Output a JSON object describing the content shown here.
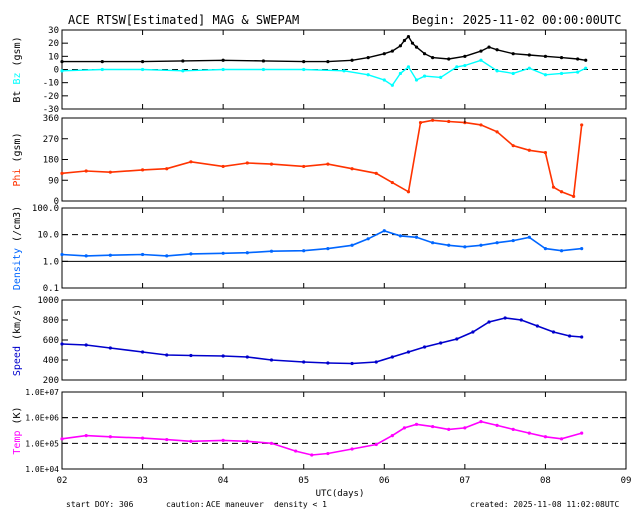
{
  "header": {
    "title": "ACE RTSW[Estimated] MAG & SWEPAM",
    "begin": "Begin: 2025-11-02 00:00:00UTC"
  },
  "footer": {
    "start_doy": "start DOY: 306",
    "caution_label": "caution:",
    "caution_maneuver": "ACE maneuver",
    "caution_density": "density < 1",
    "created": "created: 2025-11-08 11:02:08UTC"
  },
  "colors": {
    "bt": "#000000",
    "bz": "#00ffff",
    "phi": "#ff3300",
    "density": "#0066ff",
    "speed": "#0000cc",
    "temp": "#ff00ff",
    "caution_blue": "#0000cc",
    "density_blue": "#3366ff"
  },
  "chart_data": [
    {
      "type": "line",
      "panel": "mag",
      "ylabel_parts": [
        "Bt",
        "Bz",
        "(gsm)"
      ],
      "ylabel_colors": [
        "#000000",
        "#00ffff",
        "#000000"
      ],
      "ylim": [
        -30,
        30
      ],
      "yticks": [
        30,
        20,
        10,
        0,
        -10,
        -20,
        -30
      ],
      "ytick_labels": [
        "30",
        "20",
        "10",
        "0",
        "-10",
        "-20",
        "-30"
      ],
      "dashed_lines": [
        0
      ],
      "series": [
        {
          "name": "Bt",
          "color": "#000000",
          "x": [
            2.0,
            2.5,
            3.0,
            3.5,
            4.0,
            4.5,
            5.0,
            5.3,
            5.6,
            5.8,
            6.0,
            6.1,
            6.2,
            6.25,
            6.3,
            6.35,
            6.4,
            6.5,
            6.6,
            6.8,
            7.0,
            7.2,
            7.3,
            7.4,
            7.6,
            7.8,
            8.0,
            8.2,
            8.4,
            8.5
          ],
          "y": [
            6,
            6,
            6,
            6.5,
            7,
            6.5,
            6,
            6,
            7,
            9,
            12,
            14,
            18,
            22,
            25,
            20,
            17,
            12,
            9,
            8,
            10,
            14,
            17,
            15,
            12,
            11,
            10,
            9,
            8,
            7
          ]
        },
        {
          "name": "Bz",
          "color": "#00ffff",
          "x": [
            2.0,
            2.5,
            3.0,
            3.5,
            4.0,
            4.5,
            5.0,
            5.5,
            5.8,
            6.0,
            6.1,
            6.2,
            6.3,
            6.4,
            6.5,
            6.7,
            6.9,
            7.0,
            7.2,
            7.4,
            7.6,
            7.8,
            8.0,
            8.2,
            8.4,
            8.5
          ],
          "y": [
            -1,
            0,
            0,
            -1,
            0,
            0,
            0,
            -1,
            -4,
            -8,
            -12,
            -3,
            2,
            -8,
            -5,
            -6,
            2,
            3,
            7,
            -1,
            -3,
            1,
            -4,
            -3,
            -2,
            1
          ]
        }
      ]
    },
    {
      "type": "scatter",
      "panel": "phi",
      "ylabel_parts": [
        "Phi",
        "(gsm)"
      ],
      "ylabel_colors": [
        "#ff3300",
        "#000000"
      ],
      "ylim": [
        0,
        360
      ],
      "yticks": [
        360,
        270,
        180,
        90,
        0
      ],
      "ytick_labels": [
        "360",
        "270",
        "180",
        "90",
        "0"
      ],
      "series": [
        {
          "name": "Phi",
          "color": "#ff3300",
          "x": [
            2.0,
            2.3,
            2.6,
            3.0,
            3.3,
            3.6,
            4.0,
            4.3,
            4.6,
            5.0,
            5.3,
            5.6,
            5.9,
            6.1,
            6.3,
            6.45,
            6.6,
            6.8,
            7.0,
            7.2,
            7.4,
            7.6,
            7.8,
            8.0,
            8.1,
            8.2,
            8.35,
            8.45
          ],
          "y": [
            120,
            130,
            125,
            135,
            140,
            170,
            150,
            165,
            160,
            150,
            160,
            140,
            120,
            80,
            40,
            340,
            350,
            345,
            340,
            330,
            300,
            240,
            220,
            210,
            60,
            40,
            20,
            330
          ]
        }
      ]
    },
    {
      "type": "scatter",
      "panel": "density",
      "ylabel_parts": [
        "Density",
        "(/cm3)"
      ],
      "ylabel_colors": [
        "#0066ff",
        "#000000"
      ],
      "scale": "log",
      "ylim": [
        0.1,
        100.0
      ],
      "yticks": [
        100.0,
        10.0,
        1.0,
        0.1
      ],
      "ytick_labels": [
        "100.0",
        "10.0",
        "1.0",
        "0.1"
      ],
      "dashed_lines": [
        10.0
      ],
      "solid_lines": [
        1.0
      ],
      "series": [
        {
          "name": "Density",
          "color": "#0066ff",
          "x": [
            2.0,
            2.3,
            2.6,
            3.0,
            3.3,
            3.6,
            4.0,
            4.3,
            4.6,
            5.0,
            5.3,
            5.6,
            5.8,
            6.0,
            6.2,
            6.4,
            6.6,
            6.8,
            7.0,
            7.2,
            7.4,
            7.6,
            7.8,
            8.0,
            8.2,
            8.45
          ],
          "y": [
            1.8,
            1.6,
            1.7,
            1.8,
            1.6,
            1.9,
            2.0,
            2.1,
            2.4,
            2.5,
            3.0,
            4.0,
            7.0,
            14.0,
            9.0,
            8.0,
            5.0,
            4.0,
            3.5,
            4.0,
            5.0,
            6.0,
            8.0,
            3.0,
            2.5,
            3.0
          ]
        }
      ]
    },
    {
      "type": "scatter",
      "panel": "speed",
      "ylabel_parts": [
        "Speed",
        "(km/s)"
      ],
      "ylabel_colors": [
        "#0000cc",
        "#000000"
      ],
      "ylim": [
        200,
        1000
      ],
      "yticks": [
        1000,
        800,
        600,
        400,
        200
      ],
      "ytick_labels": [
        "1000",
        "800",
        "600",
        "400",
        "200"
      ],
      "series": [
        {
          "name": "Speed",
          "color": "#0000cc",
          "x": [
            2.0,
            2.3,
            2.6,
            3.0,
            3.3,
            3.6,
            4.0,
            4.3,
            4.6,
            5.0,
            5.3,
            5.6,
            5.9,
            6.1,
            6.3,
            6.5,
            6.7,
            6.9,
            7.1,
            7.3,
            7.5,
            7.7,
            7.9,
            8.1,
            8.3,
            8.45
          ],
          "y": [
            560,
            550,
            520,
            480,
            450,
            445,
            440,
            430,
            400,
            380,
            370,
            365,
            380,
            430,
            480,
            530,
            570,
            610,
            680,
            780,
            820,
            800,
            740,
            680,
            640,
            630
          ]
        }
      ]
    },
    {
      "type": "scatter",
      "panel": "temp",
      "ylabel_parts": [
        "Temp",
        "(K)"
      ],
      "ylabel_colors": [
        "#ff00ff",
        "#000000"
      ],
      "scale": "log",
      "ylim": [
        10000,
        10000000
      ],
      "yticks": [
        10000000,
        1000000,
        100000,
        10000
      ],
      "ytick_labels": [
        "1.0E+07",
        "1.0E+06",
        "1.0E+05",
        "1.0E+04"
      ],
      "dashed_lines": [
        1000000,
        100000
      ],
      "series": [
        {
          "name": "Temp",
          "color": "#ff00ff",
          "x": [
            2.0,
            2.3,
            2.6,
            3.0,
            3.3,
            3.6,
            4.0,
            4.3,
            4.6,
            4.9,
            5.1,
            5.3,
            5.6,
            5.9,
            6.1,
            6.25,
            6.4,
            6.6,
            6.8,
            7.0,
            7.2,
            7.4,
            7.6,
            7.8,
            8.0,
            8.2,
            8.45
          ],
          "y": [
            150000,
            200000,
            180000,
            160000,
            140000,
            120000,
            130000,
            120000,
            100000,
            50000,
            35000,
            40000,
            60000,
            90000,
            200000,
            400000,
            550000,
            450000,
            350000,
            400000,
            700000,
            500000,
            350000,
            250000,
            180000,
            150000,
            250000
          ]
        }
      ]
    }
  ],
  "x_axis": {
    "label": "UTC(days)",
    "xlim": [
      2,
      9
    ],
    "ticks": [
      2,
      3,
      4,
      5,
      6,
      7,
      8,
      9
    ],
    "tick_labels": [
      "02",
      "03",
      "04",
      "05",
      "06",
      "07",
      "08",
      "09"
    ]
  }
}
